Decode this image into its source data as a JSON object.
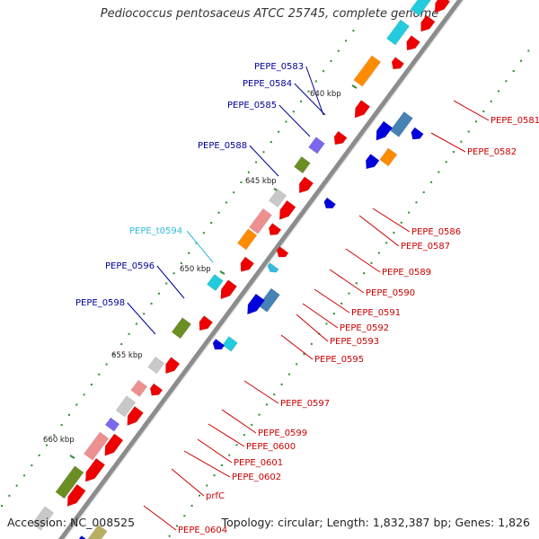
{
  "title": "Pediococcus pentosaceus ATCC 25745, complete genome",
  "accession": "Accession: NC_008525",
  "summary": "Topology: circular; Length: 1,832,387 bp; Genes: 1,826",
  "colors": {
    "backbone": "#8c8c8c",
    "tick": "#2e8b2e",
    "left_label": "#000099",
    "rna_label": "#33bbdd",
    "right_label": "#cc0000",
    "red_gene": "#ee0000",
    "blue_gene": "#0000dd",
    "steel_gene": "#4682b4",
    "cyan_gene": "#22ccdd",
    "orange_gene": "#ff8c00",
    "olive_gene": "#6b8e23",
    "grey_gene": "#c8c8c8",
    "pink_gene": "#ee9090",
    "purple_gene": "#7b68ee",
    "khaki_gene": "#b8b060"
  },
  "scale_labels": [
    "640 kbp",
    "645 kbp",
    "650 kbp",
    "655 kbp",
    "660 kbp"
  ],
  "left_labels": [
    "PEPE_0583",
    "PEPE_0584",
    "PEPE_0585",
    "PEPE_0588",
    "PEPE_t0594",
    "PEPE_0596",
    "PEPE_0598"
  ],
  "right_labels": [
    "PEPE_0581",
    "PEPE_0582",
    "PEPE_0586",
    "PEPE_0587",
    "PEPE_0589",
    "PEPE_0590",
    "PEPE_0591",
    "PEPE_0592",
    "PEPE_0593",
    "PEPE_0595",
    "PEPE_0597",
    "PEPE_0599",
    "PEPE_0600",
    "PEPE_0601",
    "PEPE_0602",
    "prfC",
    "PEPE_0604"
  ]
}
